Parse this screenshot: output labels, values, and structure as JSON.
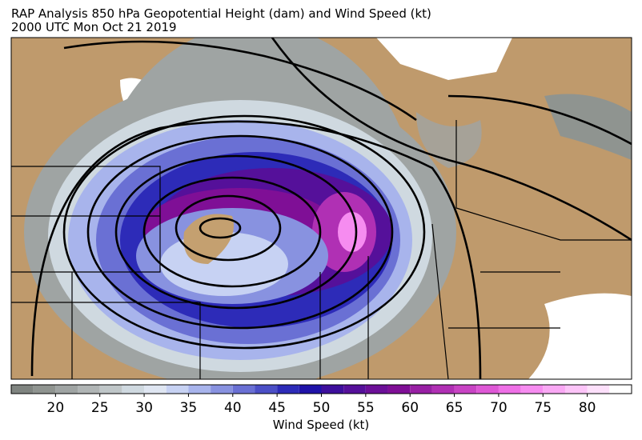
{
  "title": "RAP Analysis 850 hPa Geopotential Height (dam) and Wind Speed (kt)",
  "subtitle": "2000 UTC Mon Oct 21 2019",
  "colorbar": {
    "label": "Wind Speed (kt)",
    "xlim": [
      15,
      85
    ],
    "xticks": [
      20,
      25,
      30,
      35,
      40,
      45,
      50,
      55,
      60,
      65,
      70,
      75,
      80
    ],
    "bounds": [
      15,
      17.5,
      20,
      22.5,
      25,
      27.5,
      30,
      32.5,
      35,
      37.5,
      40,
      42.5,
      45,
      47.5,
      50,
      52.5,
      55,
      57.5,
      60,
      62.5,
      65,
      67.5,
      70,
      72.5,
      75,
      77.5,
      80,
      82.5,
      85
    ],
    "colors": [
      "#7f8480",
      "#8f9490",
      "#9fa4a3",
      "#b0b5b5",
      "#bfc6c8",
      "#cfd9e0",
      "#dfe6f2",
      "#c7d2f3",
      "#a8b4ec",
      "#8892e0",
      "#6a70d4",
      "#4b4fc6",
      "#2d2bb8",
      "#1f12a8",
      "#3d0f9c",
      "#55109a",
      "#6c1098",
      "#7f0f96",
      "#9820a4",
      "#b030b4",
      "#c844c4",
      "#de58d6",
      "#ee70e6",
      "#f68cf0",
      "#f9a8f4",
      "#fcc4f8",
      "#fde0fb",
      "#ffffff"
    ]
  }
}
